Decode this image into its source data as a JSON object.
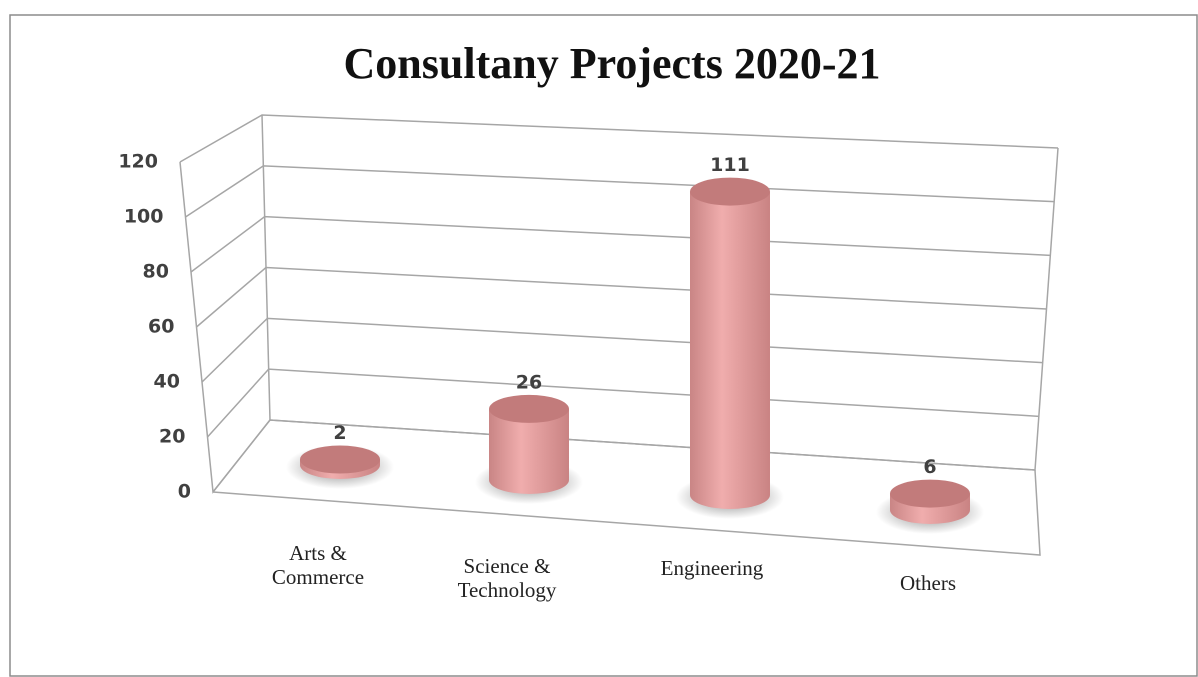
{
  "chart_data": {
    "type": "bar",
    "title": "Consultany Projects 2020-21",
    "categories": [
      "Arts & Commerce",
      "Science & Technology",
      "Engineering",
      "Others"
    ],
    "values": [
      2,
      26,
      111,
      6
    ],
    "color": "#e9a1a1",
    "ylim": [
      0,
      120
    ],
    "yticks": [
      0,
      20,
      40,
      60,
      80,
      100,
      120
    ],
    "grid": true
  }
}
